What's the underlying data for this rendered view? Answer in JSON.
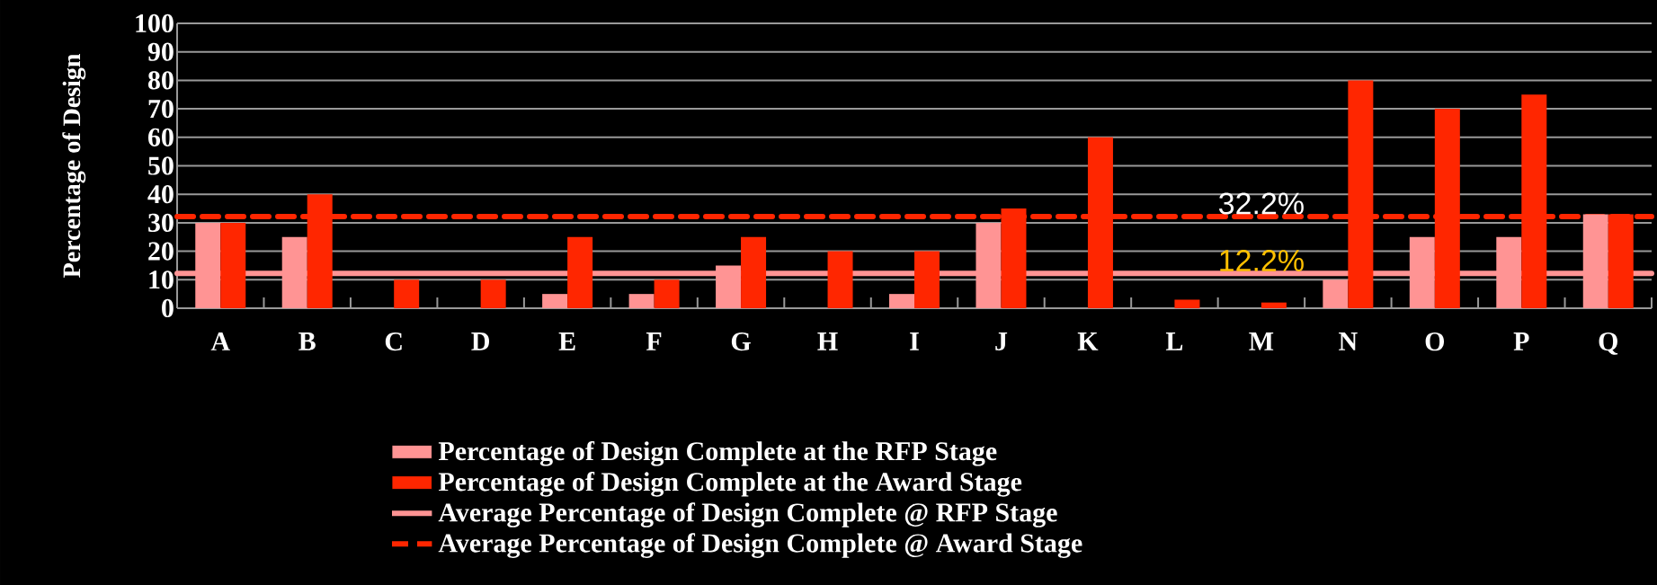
{
  "chart_data": {
    "type": "bar",
    "ylabel": "Percentage of Design",
    "categories": [
      "A",
      "B",
      "C",
      "D",
      "E",
      "F",
      "G",
      "H",
      "I",
      "J",
      "K",
      "L",
      "M",
      "N",
      "O",
      "P",
      "Q"
    ],
    "series": [
      {
        "name": "Percentage of Design Complete at the RFP Stage",
        "color": "#ff9494",
        "values": [
          30,
          25,
          0,
          0,
          5,
          5,
          15,
          0,
          5,
          30,
          0,
          0,
          0,
          10,
          25,
          25,
          33
        ]
      },
      {
        "name": "Percentage of Design Complete at the Award Stage",
        "color": "#ff2600",
        "values": [
          30,
          40,
          10,
          10,
          25,
          10,
          25,
          20,
          20,
          35,
          60,
          3,
          2,
          80,
          70,
          75,
          33
        ]
      }
    ],
    "ref_lines": [
      {
        "axis": "y",
        "value": 12.2,
        "label": "12.2%",
        "color": "#ff9494",
        "line_style": "solid"
      },
      {
        "axis": "y",
        "value": 32.2,
        "label": "32.2%",
        "color": "#ff2600",
        "line_style": "dashed"
      }
    ],
    "annotations": [
      "Average Percentage of Design Complete @ RFP Stage",
      "Average Percentage of Design Complete @ Award Stage"
    ],
    "ylim": [
      0,
      100
    ],
    "yticks": [
      0,
      10,
      20,
      30,
      40,
      50,
      60,
      70,
      80,
      90,
      100
    ],
    "grid": "y",
    "legend": "bottom"
  }
}
